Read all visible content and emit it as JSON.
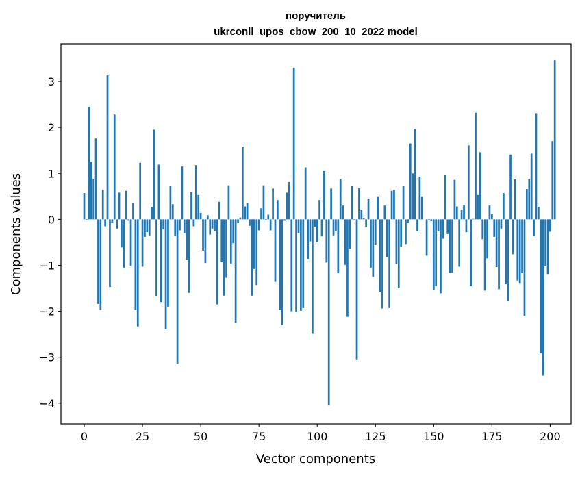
{
  "chart_data": {
    "type": "bar",
    "title_line1": "поручитель",
    "title_line2": "ukrconll_upos_cbow_200_10_2022 model",
    "xlabel": "Vector components",
    "ylabel": "Components values",
    "xlim": [
      -10,
      209
    ],
    "ylim": [
      -4.45,
      3.82
    ],
    "xticks": [
      0,
      25,
      50,
      75,
      100,
      125,
      150,
      175,
      200
    ],
    "xtick_labels": [
      "0",
      "25",
      "50",
      "75",
      "100",
      "125",
      "150",
      "175",
      "200"
    ],
    "yticks": [
      -4,
      -3,
      -2,
      -1,
      0,
      1,
      2,
      3
    ],
    "ytick_labels": [
      "−4",
      "−3",
      "−2",
      "−1",
      "0",
      "1",
      "2",
      "3"
    ],
    "grid": false,
    "bar_color": "#1f77b4",
    "values": [
      0.57,
      -0.01,
      2.45,
      1.25,
      0.88,
      1.76,
      -1.84,
      -1.97,
      0.64,
      -0.15,
      3.15,
      -1.47,
      -0.07,
      2.28,
      -0.2,
      0.58,
      -0.61,
      -1.05,
      0.62,
      -0.03,
      -1.02,
      0.36,
      -1.97,
      -2.33,
      1.23,
      -1.03,
      -0.38,
      -0.28,
      -0.35,
      0.27,
      1.95,
      -1.67,
      1.19,
      -1.8,
      -0.22,
      -2.39,
      -1.9,
      0.72,
      0.33,
      -0.36,
      -3.15,
      -0.24,
      1.15,
      -0.3,
      -0.88,
      -1.6,
      0.59,
      -0.15,
      1.18,
      0.53,
      0.14,
      -0.68,
      -0.95,
      0.09,
      -0.33,
      -0.2,
      -0.26,
      -1.85,
      0.38,
      -0.93,
      -1.66,
      -1.27,
      0.74,
      -0.96,
      -0.52,
      -2.25,
      -0.08,
      0.04,
      1.58,
      0.28,
      0.36,
      -0.14,
      -1.66,
      -1.08,
      -1.43,
      -0.24,
      0.24,
      0.74,
      -0.01,
      0.1,
      -0.24,
      0.67,
      -1.36,
      0.42,
      -1.97,
      -2.3,
      -0.03,
      0.58,
      0.81,
      -2.0,
      3.3,
      -2.02,
      -0.3,
      -1.99,
      -1.93,
      1.13,
      -0.86,
      -0.48,
      -2.49,
      -0.17,
      -0.5,
      0.42,
      -0.37,
      1.05,
      -0.94,
      -4.05,
      0.67,
      -0.35,
      -0.25,
      -1.17,
      0.87,
      0.3,
      -0.99,
      -2.12,
      -0.64,
      0.72,
      -0.02,
      -3.06,
      0.68,
      0.2,
      0.02,
      -0.16,
      0.45,
      -1.05,
      -1.25,
      -0.56,
      0.5,
      -1.58,
      -1.94,
      0.3,
      -0.82,
      -1.93,
      0.62,
      0.64,
      -0.97,
      -1.5,
      -0.59,
      0.72,
      -0.55,
      -0.07,
      1.65,
      1.0,
      1.97,
      -0.26,
      0.93,
      0.5,
      0.0,
      -0.79,
      -0.02,
      -0.04,
      -1.54,
      -1.45,
      -0.26,
      -1.61,
      -0.42,
      0.96,
      -0.32,
      -1.16,
      -1.16,
      0.86,
      0.28,
      -1.03,
      0.21,
      0.31,
      -0.28,
      1.61,
      -1.45,
      0.01,
      2.32,
      0.53,
      1.46,
      -0.43,
      -1.55,
      -0.85,
      0.3,
      0.11,
      -0.38,
      -1.04,
      -1.52,
      -0.2,
      0.57,
      -1.41,
      -1.78,
      1.41,
      -0.76,
      0.87,
      -1.33,
      -1.4,
      -1.17,
      -2.1,
      0.66,
      0.88,
      1.43,
      -0.36,
      2.31,
      0.27,
      -2.9,
      -3.4,
      -1.02,
      -1.19,
      -0.27,
      1.7,
      3.46
    ]
  }
}
